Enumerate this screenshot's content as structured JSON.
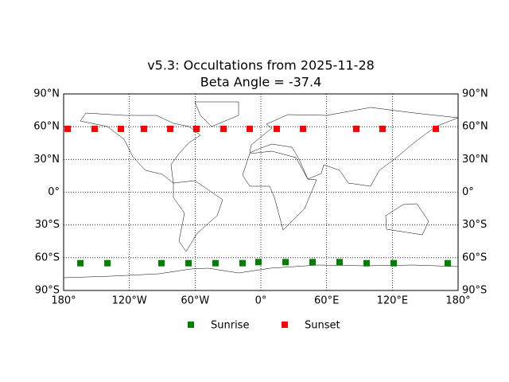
{
  "chart_data": {
    "type": "scatter",
    "title": "v5.3: Occultations from 2025-11-28",
    "subtitle": "Beta Angle = -37.4",
    "series": [
      {
        "name": "Sunrise",
        "color": "#008000",
        "x": [
          -164.7,
          -140,
          -90.7,
          -66,
          -41.4,
          -16.7,
          -2.2,
          22.5,
          47.2,
          71.8,
          96.5,
          121.2,
          170.5
        ],
        "values": [
          -65,
          -65,
          -65,
          -65,
          -65,
          -65,
          -64,
          -64,
          -64,
          -64,
          -65,
          -65,
          -65
        ]
      },
      {
        "name": "Sunset",
        "color": "#ff0000",
        "x": [
          -176.3,
          -151.7,
          -127.7,
          -106.7,
          -82.7,
          -58.8,
          -34.1,
          -10.2,
          14.5,
          38.5,
          87.1,
          111,
          159.7
        ],
        "values": [
          58,
          58,
          58,
          58,
          58,
          58,
          58,
          58,
          58,
          58,
          58,
          58,
          58
        ]
      }
    ],
    "xlim": [
      -180,
      180
    ],
    "ylim": [
      -90,
      90
    ],
    "xticks": [
      {
        "value": -180,
        "label": "180°"
      },
      {
        "value": -120,
        "label": "120°W"
      },
      {
        "value": -60,
        "label": "60°W"
      },
      {
        "value": 0,
        "label": "0°"
      },
      {
        "value": 60,
        "label": "60°E"
      },
      {
        "value": 120,
        "label": "120°E"
      },
      {
        "value": 180,
        "label": "180°"
      }
    ],
    "yticks": [
      {
        "value": -90,
        "label": "90°S"
      },
      {
        "value": -60,
        "label": "60°S"
      },
      {
        "value": -30,
        "label": "30°S"
      },
      {
        "value": 0,
        "label": "0°"
      },
      {
        "value": 30,
        "label": "30°N"
      },
      {
        "value": 60,
        "label": "60°N"
      },
      {
        "value": 90,
        "label": "90°N"
      }
    ],
    "grid": true,
    "legend": "bottom"
  }
}
